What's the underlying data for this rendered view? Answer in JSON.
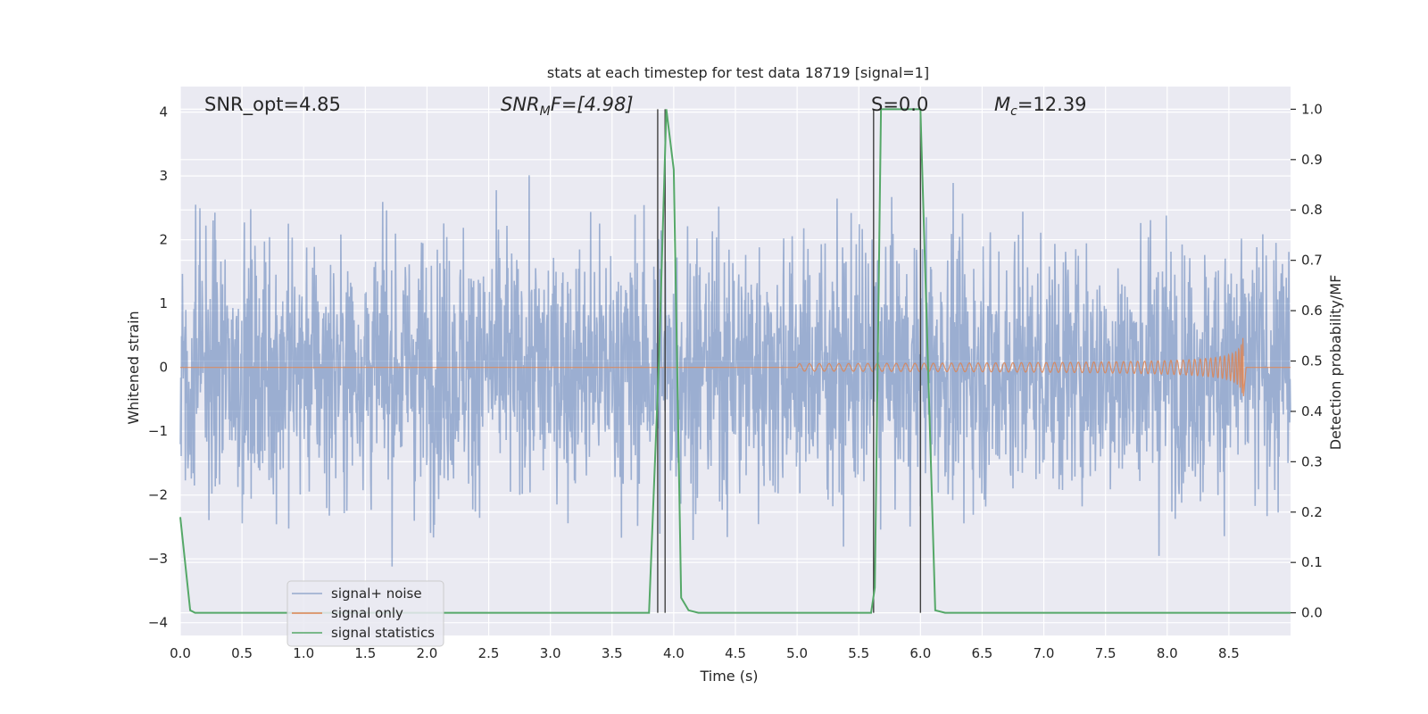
{
  "chart_data": {
    "type": "line",
    "title": "stats at each timestep for test data 18719 [signal=1]",
    "xlabel": "Time (s)",
    "ylabel": "Whitened strain",
    "y2label": "Detection probability/MF",
    "xlim": [
      0,
      9.0
    ],
    "ylim": [
      -4.2,
      4.4
    ],
    "y2lim": [
      -0.045,
      1.045
    ],
    "xticks": [
      "0.0",
      "0.5",
      "1.0",
      "1.5",
      "2.0",
      "2.5",
      "3.0",
      "3.5",
      "4.0",
      "4.5",
      "5.0",
      "5.5",
      "6.0",
      "6.5",
      "7.0",
      "7.5",
      "8.0",
      "8.5"
    ],
    "yticks": [
      "4",
      "3",
      "2",
      "1",
      "0",
      "−1",
      "−2",
      "−3",
      "−4"
    ],
    "y2ticks": [
      "1.0",
      "0.9",
      "0.8",
      "0.7",
      "0.6",
      "0.5",
      "0.4",
      "0.3",
      "0.2",
      "0.1",
      "0.0"
    ],
    "grid": true,
    "legend_position": "lower-left",
    "annotations": {
      "snr_opt": "SNR_opt=4.85",
      "snr_mf_base": "SNR",
      "snr_mf_sub": "M",
      "snr_mf_rest": "F=[4.98]",
      "s_value": "S=0.0",
      "mc_base": "M",
      "mc_sub": "c",
      "mc_rest": "=12.39"
    },
    "series": [
      {
        "name": "signal+ noise",
        "color": "#4c72b0",
        "kind": "noise",
        "y_sigma": 1.0,
        "y_range": [
          -3.7,
          4.0
        ]
      },
      {
        "name": "signal only",
        "color": "#dd8452",
        "kind": "chirp",
        "x_start": 5.0,
        "x_merger": 8.62,
        "x_end": 9.0,
        "peak_amplitude": 0.55
      },
      {
        "name": "signal statistics",
        "color": "#55a868",
        "kind": "line",
        "axis": "y2",
        "x": [
          0.0,
          0.08,
          0.12,
          3.8,
          3.88,
          3.94,
          4.0,
          4.06,
          4.12,
          4.2,
          5.6,
          5.63,
          5.68,
          6.0,
          6.12,
          6.2,
          9.0
        ],
        "y": [
          0.19,
          0.005,
          0.0,
          0.0,
          0.5,
          1.0,
          0.88,
          0.03,
          0.005,
          0.0,
          0.0,
          0.05,
          1.0,
          1.0,
          0.005,
          0.0,
          0.0
        ]
      }
    ],
    "vlines": [
      3.87,
      3.93,
      5.62,
      6.0
    ],
    "vline_color": "#404040"
  }
}
